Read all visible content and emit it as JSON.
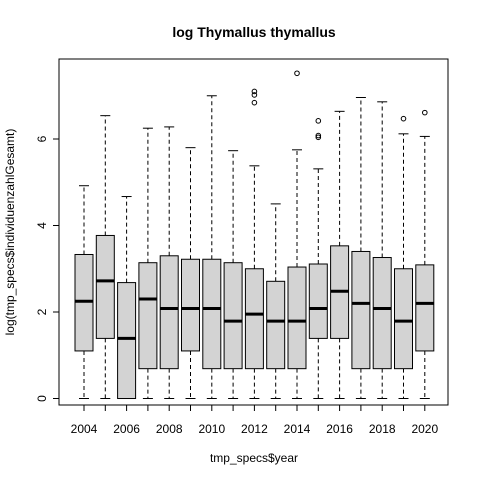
{
  "chart_data": {
    "type": "boxplot",
    "title": "log Thymallus thymallus",
    "xlabel": "tmp_specs$year",
    "ylabel": "log(tmp_specs$individuenzahlGesamt)",
    "ylim": [
      -0.15,
      7.85
    ],
    "yticks": [
      0,
      2,
      4,
      6
    ],
    "xtick_labels": [
      "2004",
      "2006",
      "2008",
      "2010",
      "2012",
      "2014",
      "2016",
      "2018",
      "2020"
    ],
    "categories": [
      "2004",
      "2005",
      "2006",
      "2007",
      "2008",
      "2009",
      "2010",
      "2011",
      "2012",
      "2013",
      "2014",
      "2015",
      "2016",
      "2017",
      "2018",
      "2019",
      "2020"
    ],
    "box_fill": "#d3d3d3",
    "grid": false,
    "boxes": [
      {
        "year": "2004",
        "lower_whisker": 0,
        "q1": 1.1,
        "median": 2.25,
        "q3": 3.33,
        "upper_whisker": 4.92,
        "outliers": []
      },
      {
        "year": "2005",
        "lower_whisker": 0,
        "q1": 1.39,
        "median": 2.72,
        "q3": 3.77,
        "upper_whisker": 6.54,
        "outliers": []
      },
      {
        "year": "2006",
        "lower_whisker": 0,
        "q1": 0,
        "median": 1.39,
        "q3": 2.68,
        "upper_whisker": 4.67,
        "outliers": []
      },
      {
        "year": "2007",
        "lower_whisker": 0,
        "q1": 0.69,
        "median": 2.3,
        "q3": 3.14,
        "upper_whisker": 6.25,
        "outliers": []
      },
      {
        "year": "2008",
        "lower_whisker": 0,
        "q1": 0.69,
        "median": 2.08,
        "q3": 3.3,
        "upper_whisker": 6.28,
        "outliers": []
      },
      {
        "year": "2009",
        "lower_whisker": 0,
        "q1": 1.1,
        "median": 2.08,
        "q3": 3.22,
        "upper_whisker": 5.8,
        "outliers": []
      },
      {
        "year": "2010",
        "lower_whisker": 0,
        "q1": 0.69,
        "median": 2.08,
        "q3": 3.22,
        "upper_whisker": 7.0,
        "outliers": []
      },
      {
        "year": "2011",
        "lower_whisker": 0,
        "q1": 0.69,
        "median": 1.79,
        "q3": 3.14,
        "upper_whisker": 5.73,
        "outliers": []
      },
      {
        "year": "2012",
        "lower_whisker": 0,
        "q1": 0.69,
        "median": 1.95,
        "q3": 3.0,
        "upper_whisker": 5.38,
        "outliers": [
          6.84,
          7.02,
          7.1
        ]
      },
      {
        "year": "2013",
        "lower_whisker": 0,
        "q1": 0.69,
        "median": 1.79,
        "q3": 2.71,
        "upper_whisker": 4.5,
        "outliers": []
      },
      {
        "year": "2014",
        "lower_whisker": 0,
        "q1": 0.69,
        "median": 1.79,
        "q3": 3.04,
        "upper_whisker": 5.75,
        "outliers": [
          7.52
        ]
      },
      {
        "year": "2015",
        "lower_whisker": 0,
        "q1": 1.39,
        "median": 2.08,
        "q3": 3.11,
        "upper_whisker": 5.31,
        "outliers": [
          6.04,
          6.08,
          6.42
        ]
      },
      {
        "year": "2016",
        "lower_whisker": 0,
        "q1": 1.39,
        "median": 2.48,
        "q3": 3.53,
        "upper_whisker": 6.64,
        "outliers": []
      },
      {
        "year": "2017",
        "lower_whisker": 0,
        "q1": 0.69,
        "median": 2.2,
        "q3": 3.4,
        "upper_whisker": 6.96,
        "outliers": []
      },
      {
        "year": "2018",
        "lower_whisker": 0,
        "q1": 0.69,
        "median": 2.08,
        "q3": 3.26,
        "upper_whisker": 6.86,
        "outliers": []
      },
      {
        "year": "2019",
        "lower_whisker": 0,
        "q1": 0.69,
        "median": 1.79,
        "q3": 3.0,
        "upper_whisker": 6.12,
        "outliers": [
          6.47
        ]
      },
      {
        "year": "2020",
        "lower_whisker": 0,
        "q1": 1.1,
        "median": 2.2,
        "q3": 3.09,
        "upper_whisker": 6.06,
        "outliers": [
          6.61
        ]
      }
    ]
  }
}
